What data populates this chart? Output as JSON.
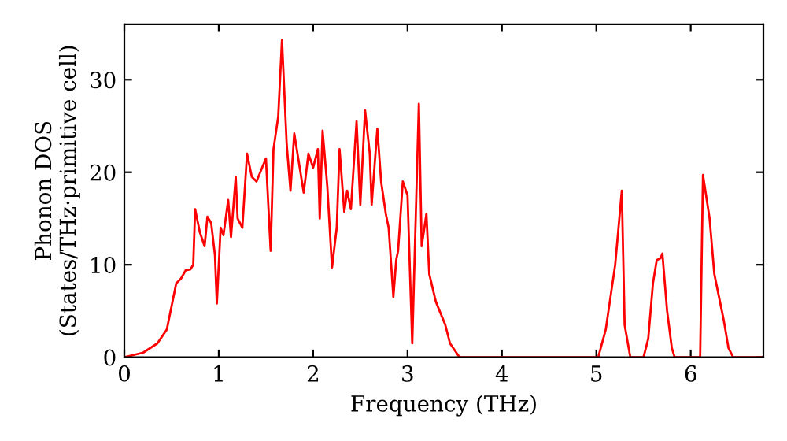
{
  "chart_data": {
    "type": "line",
    "xlabel": "Frequency (THz)",
    "ylabel": "Phonon DOS\n(States/THz·primitive cell)",
    "x": [
      0,
      0.2,
      0.35,
      0.45,
      0.5,
      0.55,
      0.6,
      0.65,
      0.7,
      0.73,
      0.75,
      0.8,
      0.85,
      0.88,
      0.92,
      0.96,
      0.98,
      1.02,
      1.05,
      1.1,
      1.13,
      1.18,
      1.2,
      1.25,
      1.3,
      1.35,
      1.4,
      1.5,
      1.55,
      1.58,
      1.63,
      1.67,
      1.72,
      1.76,
      1.8,
      1.85,
      1.9,
      1.95,
      2.0,
      2.05,
      2.07,
      2.1,
      2.15,
      2.2,
      2.25,
      2.28,
      2.33,
      2.36,
      2.4,
      2.46,
      2.5,
      2.55,
      2.6,
      2.62,
      2.68,
      2.72,
      2.77,
      2.8,
      2.85,
      2.88,
      2.9,
      2.95,
      3.0,
      3.05,
      3.12,
      3.15,
      3.2,
      3.23,
      3.3,
      3.4,
      3.45,
      3.55,
      5.02,
      5.1,
      5.2,
      5.27,
      5.3,
      5.36,
      5.5,
      5.55,
      5.6,
      5.64,
      5.68,
      5.7,
      5.75,
      5.8,
      5.83,
      6.1,
      6.13,
      6.2,
      6.25,
      6.35,
      6.4,
      6.45,
      6.77
    ],
    "series": [
      {
        "color": "#ff0000",
        "values": [
          0,
          0.5,
          1.5,
          3,
          5.5,
          8,
          8.5,
          9.4,
          9.5,
          10,
          16,
          13.5,
          12,
          15.2,
          14.5,
          11,
          5.8,
          14,
          13.2,
          17,
          13,
          19.5,
          15,
          14,
          22,
          19.5,
          19,
          21.5,
          11.5,
          22.5,
          26,
          34.3,
          23,
          18,
          24.2,
          21,
          17.8,
          22,
          20.5,
          22.5,
          15,
          24.5,
          18.5,
          9.7,
          14,
          22.5,
          15.7,
          18,
          16,
          25.5,
          16.5,
          26.7,
          22,
          16.5,
          24.7,
          19,
          15.5,
          14,
          6.5,
          10.5,
          11.5,
          19,
          17.5,
          1.5,
          27.4,
          12,
          15.5,
          9,
          6,
          3.5,
          1.5,
          0,
          0,
          3,
          10,
          18,
          3.5,
          0,
          0,
          2,
          8,
          10.5,
          10.7,
          11.2,
          5,
          1,
          0,
          0,
          19.7,
          15,
          9,
          4,
          1,
          0,
          0
        ]
      }
    ],
    "xlim": [
      0,
      6.77
    ],
    "ylim": [
      0,
      36
    ],
    "xticks": [
      0,
      1,
      2,
      3,
      4,
      5,
      6
    ],
    "yticks": [
      0,
      10,
      20,
      30
    ],
    "grid": false,
    "legend": false
  }
}
